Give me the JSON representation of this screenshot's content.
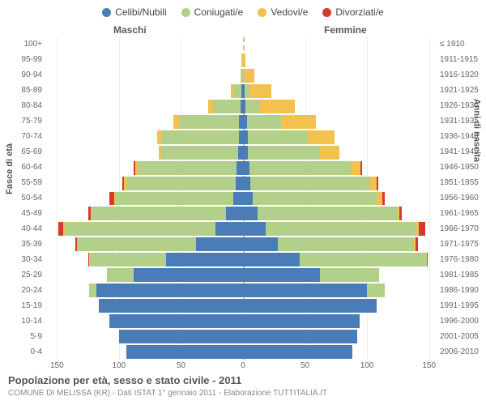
{
  "chart": {
    "type": "population-pyramid",
    "legend": [
      {
        "label": "Celibi/Nubili",
        "color": "#4a7db8"
      },
      {
        "label": "Coniugati/e",
        "color": "#b3d08a"
      },
      {
        "label": "Vedovi/e",
        "color": "#f2c14e"
      },
      {
        "label": "Divorziati/e",
        "color": "#d63a2f"
      }
    ],
    "header_male": "Maschi",
    "header_female": "Femmine",
    "y_title_left": "Fasce di età",
    "y_title_right": "Anni di nascita",
    "x_max": 160,
    "x_ticks": [
      150,
      100,
      50,
      0,
      50,
      100,
      150
    ],
    "title": "Popolazione per età, sesso e stato civile - 2011",
    "subtitle": "COMUNE DI MELISSA (KR) - Dati ISTAT 1° gennaio 2011 - Elaborazione TUTTITALIA.IT",
    "colors": {
      "celibi": "#4a7db8",
      "coniugati": "#b3d08a",
      "vedovi": "#f2c14e",
      "divorziati": "#d63a2f",
      "grid": "#eeeeee",
      "divider": "#b8c99a",
      "bg": "#ffffff"
    },
    "rows": [
      {
        "age": "100+",
        "birth": "≤ 1910",
        "m": [
          0,
          0,
          0,
          0
        ],
        "f": [
          0,
          0,
          0,
          0
        ]
      },
      {
        "age": "95-99",
        "birth": "1911-1915",
        "m": [
          0,
          0,
          1,
          0
        ],
        "f": [
          0,
          0,
          2,
          0
        ]
      },
      {
        "age": "90-94",
        "birth": "1916-1920",
        "m": [
          0,
          1,
          1,
          0
        ],
        "f": [
          0,
          1,
          8,
          0
        ]
      },
      {
        "age": "85-89",
        "birth": "1921-1925",
        "m": [
          1,
          7,
          2,
          0
        ],
        "f": [
          1,
          4,
          18,
          0
        ]
      },
      {
        "age": "80-84",
        "birth": "1926-1930",
        "m": [
          2,
          22,
          4,
          0
        ],
        "f": [
          2,
          12,
          28,
          0
        ]
      },
      {
        "age": "75-79",
        "birth": "1931-1935",
        "m": [
          3,
          48,
          5,
          0
        ],
        "f": [
          3,
          28,
          28,
          0
        ]
      },
      {
        "age": "70-74",
        "birth": "1936-1940",
        "m": [
          3,
          62,
          4,
          0
        ],
        "f": [
          4,
          48,
          22,
          0
        ]
      },
      {
        "age": "65-69",
        "birth": "1941-1945",
        "m": [
          4,
          62,
          2,
          0
        ],
        "f": [
          4,
          58,
          16,
          0
        ]
      },
      {
        "age": "60-64",
        "birth": "1946-1950",
        "m": [
          5,
          80,
          2,
          1
        ],
        "f": [
          5,
          82,
          8,
          1
        ]
      },
      {
        "age": "55-59",
        "birth": "1951-1955",
        "m": [
          6,
          88,
          2,
          1
        ],
        "f": [
          6,
          96,
          6,
          1
        ]
      },
      {
        "age": "50-54",
        "birth": "1956-1960",
        "m": [
          8,
          95,
          1,
          4
        ],
        "f": [
          8,
          100,
          4,
          2
        ]
      },
      {
        "age": "45-49",
        "birth": "1961-1965",
        "m": [
          14,
          108,
          1,
          2
        ],
        "f": [
          12,
          112,
          2,
          2
        ]
      },
      {
        "age": "40-44",
        "birth": "1966-1970",
        "m": [
          22,
          122,
          1,
          4
        ],
        "f": [
          18,
          122,
          2,
          5
        ]
      },
      {
        "age": "35-39",
        "birth": "1971-1975",
        "m": [
          38,
          96,
          0,
          1
        ],
        "f": [
          28,
          110,
          1,
          2
        ]
      },
      {
        "age": "30-34",
        "birth": "1976-1980",
        "m": [
          62,
          62,
          0,
          1
        ],
        "f": [
          46,
          102,
          0,
          1
        ]
      },
      {
        "age": "25-29",
        "birth": "1981-1985",
        "m": [
          88,
          22,
          0,
          0
        ],
        "f": [
          62,
          48,
          0,
          0
        ]
      },
      {
        "age": "20-24",
        "birth": "1986-1990",
        "m": [
          118,
          6,
          0,
          0
        ],
        "f": [
          100,
          14,
          0,
          0
        ]
      },
      {
        "age": "15-19",
        "birth": "1991-1995",
        "m": [
          116,
          0,
          0,
          0
        ],
        "f": [
          108,
          0,
          0,
          0
        ]
      },
      {
        "age": "10-14",
        "birth": "1996-2000",
        "m": [
          108,
          0,
          0,
          0
        ],
        "f": [
          94,
          0,
          0,
          0
        ]
      },
      {
        "age": "5-9",
        "birth": "2001-2005",
        "m": [
          100,
          0,
          0,
          0
        ],
        "f": [
          92,
          0,
          0,
          0
        ]
      },
      {
        "age": "0-4",
        "birth": "2006-2010",
        "m": [
          94,
          0,
          0,
          0
        ],
        "f": [
          88,
          0,
          0,
          0
        ]
      }
    ]
  }
}
